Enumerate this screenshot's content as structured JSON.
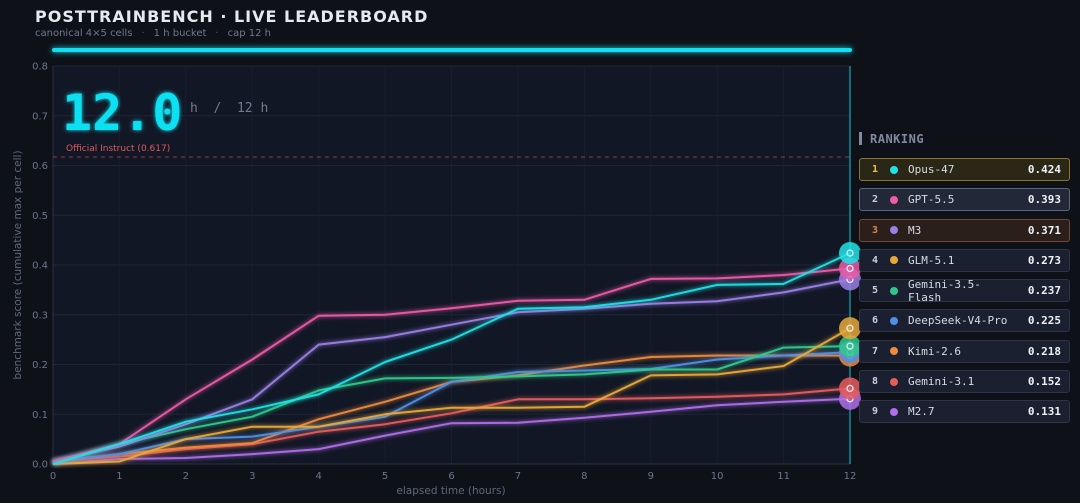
{
  "header": {
    "title": "POSTTRAINBENCH · LIVE LEADERBOARD",
    "subtitle_parts": [
      "canonical 4×5 cells",
      "1 h bucket",
      "cap 12 h"
    ]
  },
  "progress": {
    "fraction": 1.0,
    "color": "#11e0f0"
  },
  "ranking": {
    "title": "RANKING",
    "entries": [
      {
        "rank": "1",
        "name": "Opus-47",
        "score": "0.424",
        "color": "#1ee3e6"
      },
      {
        "rank": "2",
        "name": "GPT-5.5",
        "score": "0.393",
        "color": "#ec5aa8"
      },
      {
        "rank": "3",
        "name": "M3",
        "score": "0.371",
        "color": "#9a7fe6"
      },
      {
        "rank": "4",
        "name": "GLM-5.1",
        "score": "0.273",
        "color": "#e8a838"
      },
      {
        "rank": "5",
        "name": "Gemini-3.5-Flash",
        "score": "0.237",
        "color": "#2ec98a"
      },
      {
        "rank": "6",
        "name": "DeepSeek-V4-Pro",
        "score": "0.225",
        "color": "#4f8fe6"
      },
      {
        "rank": "7",
        "name": "Kimi-2.6",
        "score": "0.218",
        "color": "#ee8a3c"
      },
      {
        "rank": "8",
        "name": "Gemini-3.1",
        "score": "0.152",
        "color": "#e85c5c"
      },
      {
        "rank": "9",
        "name": "M2.7",
        "score": "0.131",
        "color": "#b06ee8"
      }
    ]
  },
  "chart_data": {
    "type": "line",
    "xlabel": "elapsed time (hours)",
    "ylabel": "benchmark score (cumulative max per cell)",
    "xlim": [
      0,
      12
    ],
    "ylim": [
      0,
      0.8
    ],
    "x_ticks": [
      "0",
      "1",
      "2",
      "3",
      "4",
      "5",
      "6",
      "7",
      "8",
      "9",
      "10",
      "11",
      "12"
    ],
    "y_ticks": [
      "0.0",
      "0.1",
      "0.2",
      "0.3",
      "0.4",
      "0.5",
      "0.6",
      "0.7",
      "0.8"
    ],
    "grid": true,
    "big_counter": "12.0",
    "counter_suffix": "h  /  12 h",
    "reference_line": {
      "label": "Official Instruct (0.617)",
      "value": 0.617,
      "color": "#e05a5a"
    },
    "current_x": 12,
    "x": [
      0,
      1,
      2,
      3,
      4,
      5,
      6,
      7,
      8,
      9,
      10,
      11,
      12
    ],
    "series": [
      {
        "name": "Opus-47",
        "color": "#1ee3e6",
        "values": [
          0.0,
          0.04,
          0.085,
          0.11,
          0.14,
          0.205,
          0.25,
          0.312,
          0.315,
          0.33,
          0.36,
          0.362,
          0.424
        ]
      },
      {
        "name": "GPT-5.5",
        "color": "#ec5aa8",
        "values": [
          0.005,
          0.04,
          0.13,
          0.21,
          0.298,
          0.3,
          0.313,
          0.328,
          0.33,
          0.372,
          0.373,
          0.38,
          0.393
        ]
      },
      {
        "name": "M3",
        "color": "#9a7fe6",
        "values": [
          0.005,
          0.035,
          0.08,
          0.13,
          0.24,
          0.255,
          0.28,
          0.305,
          0.312,
          0.322,
          0.327,
          0.345,
          0.371
        ]
      },
      {
        "name": "GLM-5.1",
        "color": "#e8a838",
        "values": [
          0.0,
          0.005,
          0.05,
          0.075,
          0.075,
          0.1,
          0.113,
          0.113,
          0.115,
          0.178,
          0.18,
          0.197,
          0.273
        ]
      },
      {
        "name": "Gemini-3.5-Flash",
        "color": "#2ec98a",
        "values": [
          0.005,
          0.04,
          0.07,
          0.095,
          0.148,
          0.172,
          0.173,
          0.176,
          0.18,
          0.19,
          0.19,
          0.234,
          0.237
        ]
      },
      {
        "name": "DeepSeek-V4-Pro",
        "color": "#4f8fe6",
        "values": [
          0.005,
          0.02,
          0.05,
          0.055,
          0.075,
          0.095,
          0.165,
          0.185,
          0.188,
          0.191,
          0.21,
          0.218,
          0.225
        ]
      },
      {
        "name": "Kimi-2.6",
        "color": "#ee8a3c",
        "values": [
          0.005,
          0.02,
          0.033,
          0.042,
          0.09,
          0.125,
          0.165,
          0.178,
          0.198,
          0.215,
          0.218,
          0.218,
          0.218
        ]
      },
      {
        "name": "Gemini-3.1",
        "color": "#e85c5c",
        "values": [
          0.005,
          0.015,
          0.03,
          0.04,
          0.065,
          0.08,
          0.102,
          0.13,
          0.13,
          0.132,
          0.135,
          0.14,
          0.152
        ]
      },
      {
        "name": "M2.7",
        "color": "#b06ee8",
        "values": [
          0.0,
          0.01,
          0.012,
          0.02,
          0.03,
          0.057,
          0.082,
          0.083,
          0.093,
          0.105,
          0.118,
          0.125,
          0.131
        ]
      }
    ]
  }
}
